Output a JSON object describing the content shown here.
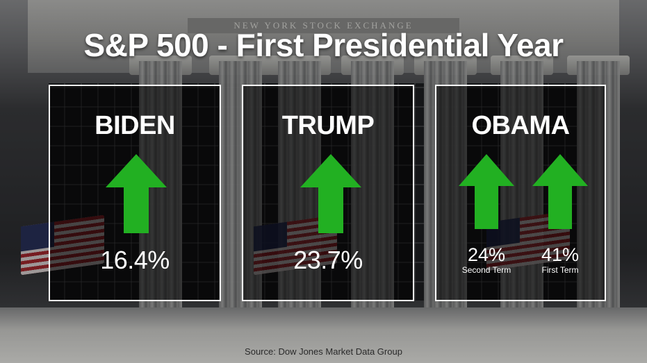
{
  "title": "S&P 500 - First Presidential Year",
  "frieze_text": "NEW YORK STOCK EXCHANGE",
  "colors": {
    "arrow_green": "#22b022",
    "panel_border": "#ffffff",
    "text": "#ffffff"
  },
  "panels": [
    {
      "name": "BIDEN",
      "icon": "up-arrow-icon",
      "value": "16.4%"
    },
    {
      "name": "TRUMP",
      "icon": "up-arrow-icon",
      "value": "23.7%"
    },
    {
      "name": "OBAMA",
      "icon": "up-arrow-icon",
      "terms": [
        {
          "value": "24%",
          "label": "Second Term"
        },
        {
          "value": "41%",
          "label": "First Term"
        }
      ]
    }
  ],
  "source": "Source: Dow Jones Market Data Group"
}
